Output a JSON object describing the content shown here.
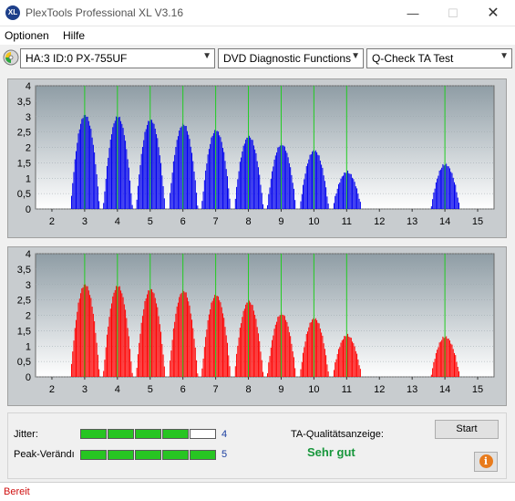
{
  "window": {
    "title": "PlexTools Professional XL V3.16",
    "icon_text": "XL",
    "controls": [
      "minimize-icon",
      "maximize-icon",
      "close-icon"
    ]
  },
  "menu": [
    "Optionen",
    "Hilfe"
  ],
  "toolbar": {
    "drive": "HA:3 ID:0  PX-755UF",
    "function": "DVD Diagnostic Functions",
    "test": "Q-Check TA Test"
  },
  "colors": {
    "chart_bg": "#c8cccf",
    "plot_bg_top": "#8f9da5",
    "plot_bg_bottom": "#ffffff",
    "top_bars": "#0000ee",
    "bottom_bars": "#ff0000",
    "marker_lines": "#22cc22",
    "meter_on": "#27c522",
    "quality_text": "#17963b",
    "status_text": "#d01010"
  },
  "chart_data": [
    {
      "type": "bar",
      "ylim": [
        0,
        4
      ],
      "yticks": [
        "4",
        "3,5",
        "3",
        "2,5",
        "2",
        "1,5",
        "1",
        "0,5",
        "0"
      ],
      "xlim": [
        1.5,
        15.5
      ],
      "xticks": [
        "2",
        "3",
        "4",
        "5",
        "6",
        "7",
        "8",
        "9",
        "10",
        "11",
        "12",
        "13",
        "14",
        "15"
      ],
      "marker_positions": [
        3,
        4,
        5,
        6,
        7,
        8,
        9,
        10,
        11,
        14
      ],
      "start_x": 2.2,
      "end_x": 14.6,
      "peaks": [
        {
          "x": 3.0,
          "h": 3.1
        },
        {
          "x": 4.0,
          "h": 3.05
        },
        {
          "x": 5.0,
          "h": 2.95
        },
        {
          "x": 6.0,
          "h": 2.8
        },
        {
          "x": 7.0,
          "h": 2.6
        },
        {
          "x": 8.0,
          "h": 2.4
        },
        {
          "x": 9.0,
          "h": 2.15
        },
        {
          "x": 10.0,
          "h": 1.95
        },
        {
          "x": 11.0,
          "h": 1.25
        },
        {
          "x": 14.0,
          "h": 1.5
        }
      ]
    },
    {
      "type": "bar",
      "ylim": [
        0,
        4
      ],
      "yticks": [
        "4",
        "3,5",
        "3",
        "2,5",
        "2",
        "1,5",
        "1",
        "0,5",
        "0"
      ],
      "xlim": [
        1.5,
        15.5
      ],
      "xticks": [
        "2",
        "3",
        "4",
        "5",
        "6",
        "7",
        "8",
        "9",
        "10",
        "11",
        "12",
        "13",
        "14",
        "15"
      ],
      "marker_positions": [
        3,
        4,
        5,
        6,
        7,
        8,
        9,
        10,
        11,
        14
      ],
      "start_x": 2.2,
      "end_x": 14.6,
      "peaks": [
        {
          "x": 3.0,
          "h": 3.05
        },
        {
          "x": 4.0,
          "h": 3.0
        },
        {
          "x": 5.0,
          "h": 2.9
        },
        {
          "x": 6.0,
          "h": 2.85
        },
        {
          "x": 7.0,
          "h": 2.7
        },
        {
          "x": 8.0,
          "h": 2.5
        },
        {
          "x": 9.0,
          "h": 2.1
        },
        {
          "x": 10.0,
          "h": 1.95
        },
        {
          "x": 11.0,
          "h": 1.4
        },
        {
          "x": 14.0,
          "h": 1.35
        }
      ]
    }
  ],
  "results": {
    "jitter_label": "Jitter:",
    "jitter_value": "4",
    "jitter_level": 4,
    "peak_label": "Peak-Verändı",
    "peak_value": "5",
    "peak_level": 5,
    "meter_segments": 5,
    "quality_label": "TA-Qualitätsanzeige:",
    "quality_value": "Sehr gut",
    "start_button": "Start",
    "info_icon": "info-icon"
  },
  "status": "Bereit"
}
